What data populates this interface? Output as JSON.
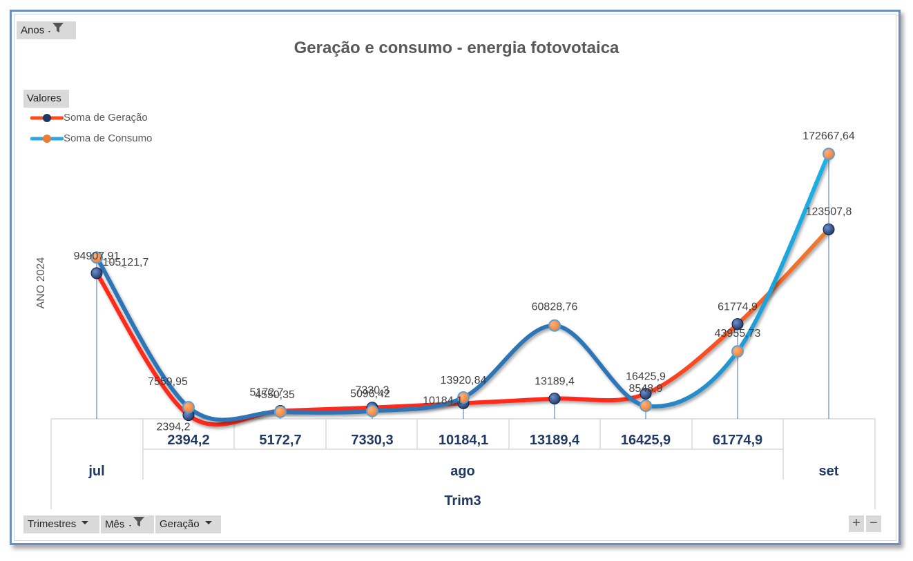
{
  "chart_data": {
    "type": "line",
    "title": "Geração e consumo - energia fotovotaica",
    "ylabel": "ANO 2024",
    "xlabel": "",
    "legend_title": "Valores",
    "legend_position": "top-left",
    "categories": [
      "jul",
      "2394,2",
      "5172,7",
      "7330,3",
      "10184,1",
      "13189,4",
      "16425,9",
      "61774,9",
      "set"
    ],
    "category_labels": [
      "",
      "2394,2",
      "5172,7",
      "7330,3",
      "10184,1",
      "13189,4",
      "16425,9",
      "61774,9",
      ""
    ],
    "month_labels": [
      "jul",
      "ago",
      "set"
    ],
    "quarter_label": "Trim3",
    "series": [
      {
        "name": "Soma de Geração",
        "values": [
          94907.91,
          2394.2,
          5172.7,
          7330.3,
          10184.1,
          13189.4,
          16425.9,
          61774.9,
          123507.8
        ],
        "labels": [
          "94907,91",
          "2394,2",
          "5172,7",
          "7330,3",
          "10184,1",
          "13189,4",
          "16425,9",
          "61774,9",
          "123507,8"
        ],
        "line_color": "#ff2a1a",
        "line_color_end": "#ed7d31",
        "marker_color": "#1f3864"
      },
      {
        "name": "Soma de Consumo",
        "values": [
          105121.7,
          7559.95,
          4550.35,
          5096.42,
          13920.84,
          60828.76,
          8548.9,
          43955.73,
          172667.64
        ],
        "labels": [
          "105121,7",
          "7559,95",
          "4550,35",
          "5096,42",
          "13920,84",
          "60828,76",
          "8548,9",
          "43955,73",
          "172667,64"
        ],
        "line_color": "#2e75b6",
        "line_color_end": "#1ab2e6",
        "marker_color": "#ed7d31"
      }
    ],
    "ylim": [
      0,
      190000
    ],
    "grid": false
  },
  "filters": {
    "anos": "Anos",
    "trimestres": "Trimestres",
    "mes": "Mês",
    "geracao": "Geração"
  },
  "zoom": {
    "plus": "+",
    "minus": "−"
  },
  "colors": {
    "frame": "#6f8fc4",
    "axis_text": "#1f3864",
    "label_text": "#404040",
    "drop_line": "#4a6fb5"
  }
}
